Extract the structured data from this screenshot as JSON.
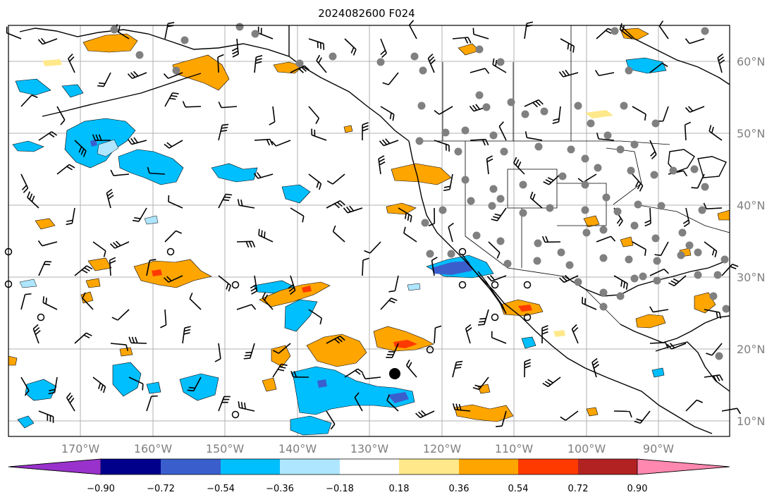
{
  "title": "2024082600 F024",
  "colors": {
    "land_line": "#000000",
    "grid": "#b0b0b0",
    "station": "#808080",
    "orange": "#ffa500",
    "light_yellow": "#ffe88a",
    "sky_blue": "#00bfff",
    "light_blue": "#aee6ff",
    "royal_blue": "#3a5fcd",
    "red": "#ff3a00"
  },
  "lat_labels": [
    "60°N",
    "50°N",
    "40°N",
    "30°N",
    "20°N",
    "10°N"
  ],
  "lon_labels": [
    "170°W",
    "160°W",
    "150°W",
    "140°W",
    "130°W",
    "120°W",
    "110°W",
    "100°W",
    "90°W"
  ],
  "colorbar": {
    "colors": [
      "#9932cc",
      "#00008b",
      "#3a5fcd",
      "#00bfff",
      "#aee6ff",
      "#ffffff",
      "#ffe88a",
      "#ffa500",
      "#ff3a00",
      "#b22222",
      "#ff88b0"
    ],
    "tick_labels": [
      "−0.90",
      "−0.72",
      "−0.54",
      "−0.36",
      "−0.18",
      "0.18",
      "0.36",
      "0.54",
      "0.72",
      "0.90"
    ]
  }
}
